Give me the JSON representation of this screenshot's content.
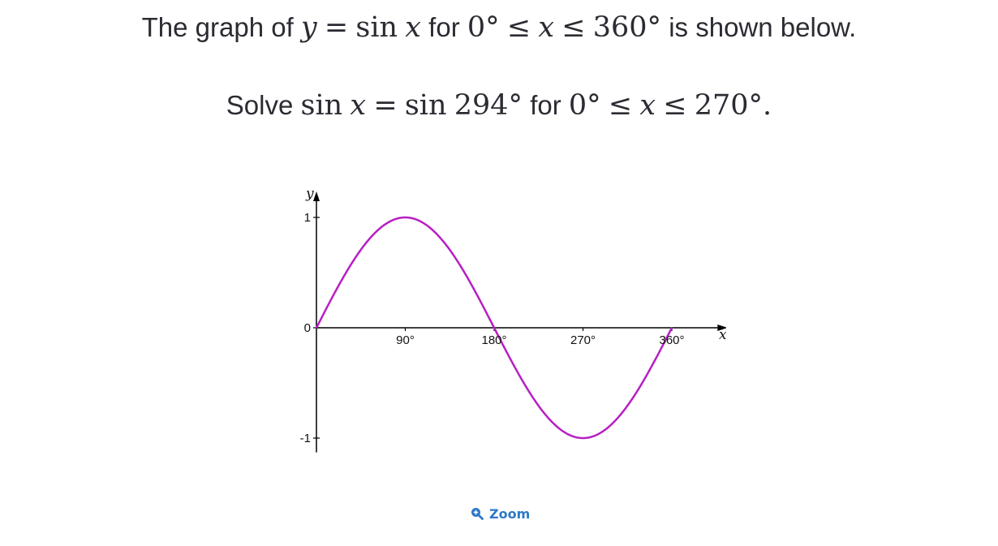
{
  "question": {
    "line1": {
      "t1": "The graph of",
      "var_y": "y",
      "eq": "=",
      "fn": "sin",
      "var_x": "x",
      "t2": "for",
      "lo": "0°",
      "le1": "≤",
      "var_x2": "x",
      "le2": "≤",
      "hi": "360°",
      "t3": "is shown below."
    },
    "line2": {
      "t1": "Solve",
      "fn1": "sin",
      "var_x": "x",
      "eq": "=",
      "fn2": "sin",
      "arg": "294°",
      "t2": "for",
      "lo": "0°",
      "le1": "≤",
      "var_x2": "x",
      "le2": "≤",
      "hi": "270°."
    }
  },
  "chart_data": {
    "type": "line",
    "xlabel": "x",
    "ylabel": "y",
    "xlim": [
      0,
      380
    ],
    "ylim": [
      -1.1,
      1.1
    ],
    "x_ticks": [
      "90°",
      "180°",
      "270°",
      "360°"
    ],
    "y_ticks": [
      "1",
      "0",
      "-1"
    ],
    "series": [
      {
        "color": "#b71fc4",
        "x": [
          0,
          30,
          60,
          90,
          120,
          150,
          180,
          210,
          240,
          270,
          300,
          330,
          360
        ],
        "y": [
          0,
          0.5,
          0.866,
          1,
          0.866,
          0.5,
          0,
          -0.5,
          -0.866,
          -1,
          -0.866,
          -0.5,
          0
        ]
      }
    ]
  },
  "zoom": {
    "label": "Zoom",
    "icon": "zoom-in-icon",
    "color": "#2e78c7"
  }
}
